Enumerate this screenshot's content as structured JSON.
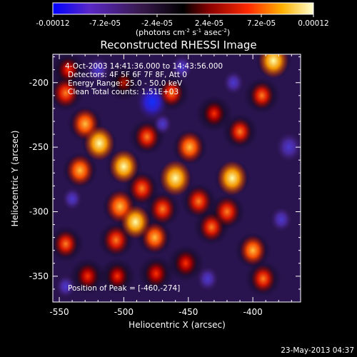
{
  "colorbar": {
    "ticks": [
      "-0.00012",
      "-7.2e-05",
      "-2.4e-05",
      "2.4e-05",
      "7.2e-05",
      "0.00012"
    ],
    "tick_values": [
      -0.00012,
      -7.2e-05,
      -2.4e-05,
      2.4e-05,
      7.2e-05,
      0.00012
    ],
    "range": [
      -0.00012,
      0.00012
    ],
    "units_main": "(photons cm",
    "units_sup1": "-2",
    "units_mid": " s",
    "units_sup2": "-1",
    "units_end": " asec",
    "units_sup3": "-2",
    "units_close": ")",
    "colors": [
      "#0000ff",
      "#5a28c8",
      "#3a1a50",
      "#000000",
      "#8a0000",
      "#ff2a00",
      "#ffb000",
      "#ffffd0"
    ]
  },
  "plot": {
    "title": "Reconstructed RHESSI Image",
    "info": [
      "4-Oct-2003 14:41:36.000 to 14:43:56.000",
      "Detectors: 4F 5F 6F 7F 8F, Att 0",
      "Energy Range: 25.0 - 50.0 keV",
      "Clean    Total counts: 1.51E+03"
    ],
    "peak_label": "Position of Peak = [-460,-274]",
    "footer_date": "23-May-2013 04:37"
  },
  "chart_data": {
    "type": "heatmap",
    "title": "Reconstructed RHESSI Image",
    "xlabel": "Heliocentric X (arcsec)",
    "ylabel": "Heliocentric Y (arcsec)",
    "xlim": [
      -555,
      -363
    ],
    "ylim": [
      -370,
      -178
    ],
    "xticks": [
      -550,
      -500,
      -450,
      -400
    ],
    "yticks": [
      -200,
      -250,
      -300,
      -350
    ],
    "xtick_labels": [
      "-550",
      "-500",
      "-450",
      "-400"
    ],
    "ytick_labels": [
      "-200",
      "-250",
      "-300",
      "-350"
    ],
    "peak": [
      -460,
      -274
    ],
    "sources": [
      {
        "x": -519,
        "y": -247,
        "v": 0.95
      },
      {
        "x": -530,
        "y": -232,
        "v": 0.8
      },
      {
        "x": -534,
        "y": -268,
        "v": 0.8
      },
      {
        "x": -500,
        "y": -265,
        "v": 0.9
      },
      {
        "x": -503,
        "y": -296,
        "v": 0.85
      },
      {
        "x": -491,
        "y": -308,
        "v": 0.9
      },
      {
        "x": -506,
        "y": -322,
        "v": 0.7
      },
      {
        "x": -482,
        "y": -242,
        "v": 0.65
      },
      {
        "x": -486,
        "y": -282,
        "v": 0.7
      },
      {
        "x": -476,
        "y": -320,
        "v": 0.75
      },
      {
        "x": -470,
        "y": -298,
        "v": 0.7
      },
      {
        "x": -460,
        "y": -274,
        "v": 1.0
      },
      {
        "x": -449,
        "y": -250,
        "v": 0.8
      },
      {
        "x": -442,
        "y": -292,
        "v": 0.7
      },
      {
        "x": -432,
        "y": -312,
        "v": 0.65
      },
      {
        "x": -420,
        "y": -300,
        "v": 0.7
      },
      {
        "x": -416,
        "y": -274,
        "v": 0.95
      },
      {
        "x": -410,
        "y": -238,
        "v": 0.6
      },
      {
        "x": -430,
        "y": -224,
        "v": 0.5
      },
      {
        "x": -384,
        "y": -183,
        "v": 0.95
      },
      {
        "x": -393,
        "y": -210,
        "v": 0.6
      },
      {
        "x": -400,
        "y": -330,
        "v": 0.75
      },
      {
        "x": -392,
        "y": -352,
        "v": 0.65
      },
      {
        "x": -545,
        "y": -208,
        "v": 0.7
      },
      {
        "x": -543,
        "y": -190,
        "v": 0.5
      },
      {
        "x": -545,
        "y": -325,
        "v": 0.6
      },
      {
        "x": -528,
        "y": -350,
        "v": 0.55
      },
      {
        "x": -505,
        "y": -350,
        "v": 0.5
      },
      {
        "x": -475,
        "y": -348,
        "v": 0.55
      },
      {
        "x": -452,
        "y": -340,
        "v": 0.55
      },
      {
        "x": -463,
        "y": -208,
        "v": 0.6
      },
      {
        "x": -500,
        "y": -200,
        "v": 0.3
      },
      {
        "x": -478,
        "y": -215,
        "v": -1.0
      },
      {
        "x": -455,
        "y": -188,
        "v": -0.5
      },
      {
        "x": -372,
        "y": -250,
        "v": -0.7
      },
      {
        "x": -378,
        "y": -306,
        "v": -0.5
      },
      {
        "x": -540,
        "y": -290,
        "v": -0.4
      },
      {
        "x": -520,
        "y": -190,
        "v": -0.55
      },
      {
        "x": -470,
        "y": -232,
        "v": -0.35
      },
      {
        "x": -435,
        "y": -352,
        "v": -0.5
      },
      {
        "x": -415,
        "y": -200,
        "v": -0.45
      },
      {
        "x": -545,
        "y": -358,
        "v": -0.4
      }
    ]
  }
}
